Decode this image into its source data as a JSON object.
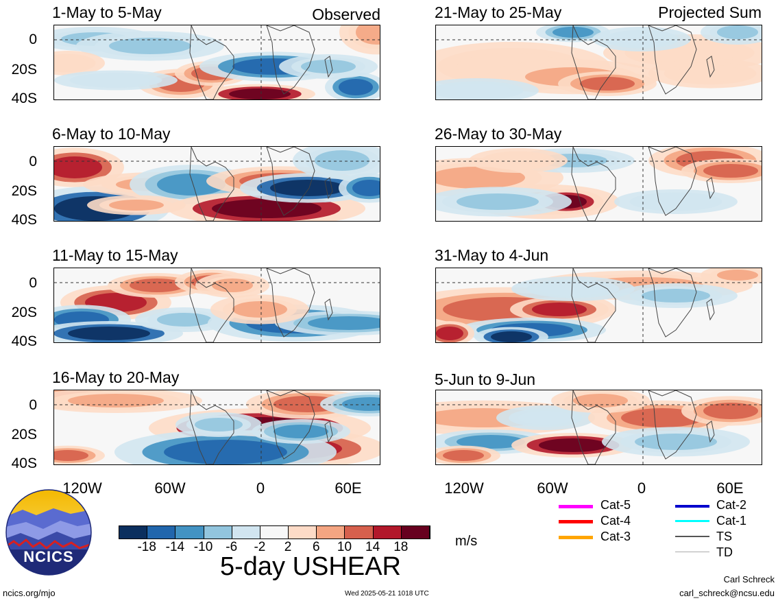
{
  "header": {
    "left_label": "Observed",
    "right_label": "Projected Sum"
  },
  "panels_left": [
    {
      "title": "1-May to 5-May"
    },
    {
      "title": "6-May to 10-May"
    },
    {
      "title": "11-May to 15-May"
    },
    {
      "title": "16-May to 20-May"
    }
  ],
  "panels_right": [
    {
      "title": "21-May to 25-May"
    },
    {
      "title": "26-May to 30-May"
    },
    {
      "title": "31-May to 4-Jun"
    },
    {
      "title": "5-Jun to 9-Jun"
    }
  ],
  "axes": {
    "lat_labels": [
      "0",
      "20S",
      "40S"
    ],
    "lon_labels": [
      "120W",
      "60W",
      "0",
      "60E"
    ]
  },
  "colorbar": {
    "ticks": [
      "-18",
      "-14",
      "-10",
      "-6",
      "-2",
      "2",
      "6",
      "10",
      "14",
      "18"
    ],
    "colors": [
      "#0b2f5e",
      "#2166ac",
      "#4393c3",
      "#92c5de",
      "#d1e5f0",
      "#f7f7f7",
      "#fddbc7",
      "#f4a582",
      "#d6604d",
      "#b2182b",
      "#67001f"
    ],
    "units": "m/s",
    "title": "5-day USHEAR"
  },
  "legend": [
    {
      "label": "Cat-5",
      "color": "#ff00ff"
    },
    {
      "label": "Cat-4",
      "color": "#ff0000"
    },
    {
      "label": "Cat-3",
      "color": "#ffa500"
    },
    {
      "label": "Cat-2",
      "color": "#0000cc"
    },
    {
      "label": "Cat-1",
      "color": "#00ffff"
    },
    {
      "label": "TS",
      "color": "#555555"
    },
    {
      "label": "TD",
      "color": "#aaaaaa"
    }
  ],
  "logo": {
    "text": "NCICS"
  },
  "footer": {
    "url": "ncics.org/mjo",
    "timestamp": "Wed 2025-05-21 1018 UTC",
    "author": "Carl Schreck",
    "email": "carl_schreck@ncsu.edu"
  }
}
